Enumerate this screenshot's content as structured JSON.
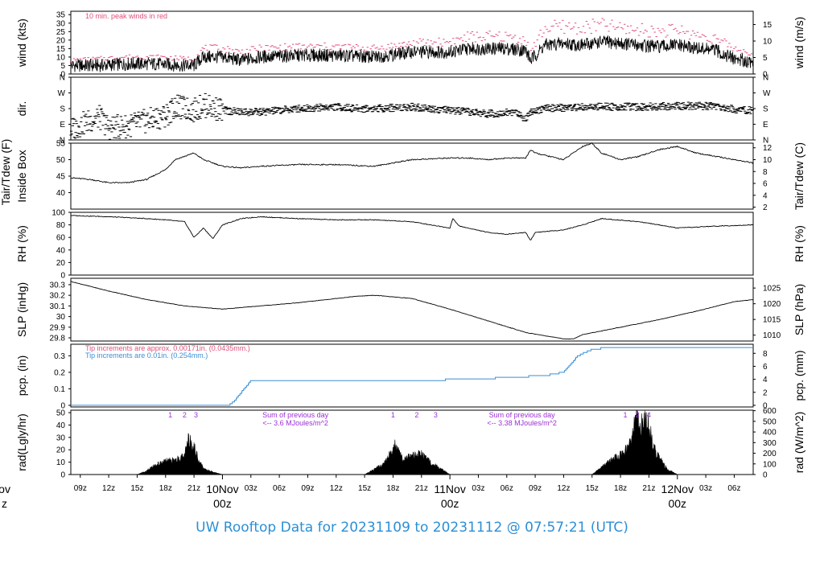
{
  "footer": {
    "title": "UW Rooftop Data for 20231109  to  20231112 @ 07:57:21  (UTC)"
  },
  "colors": {
    "peak": "#e0507a",
    "precip": "#3a8fd6",
    "radnote": "#9b2fd6",
    "day": "#e0507a",
    "title": "#2b8fd6"
  },
  "time_axis": {
    "unit": "hours since 20231109 08z",
    "range": [
      0,
      72
    ],
    "hour_ticks": [
      {
        "t": 1,
        "label": "09z"
      },
      {
        "t": 4,
        "label": "12z"
      },
      {
        "t": 7,
        "label": "15z"
      },
      {
        "t": 10,
        "label": "18z"
      },
      {
        "t": 13,
        "label": "21z"
      },
      {
        "t": 19,
        "label": "03z"
      },
      {
        "t": 22,
        "label": "06z"
      },
      {
        "t": 25,
        "label": "09z"
      },
      {
        "t": 28,
        "label": "12z"
      },
      {
        "t": 31,
        "label": "15z"
      },
      {
        "t": 34,
        "label": "18z"
      },
      {
        "t": 37,
        "label": "21z"
      },
      {
        "t": 43,
        "label": "03z"
      },
      {
        "t": 46,
        "label": "06z"
      },
      {
        "t": 49,
        "label": "09z"
      },
      {
        "t": 52,
        "label": "12z"
      },
      {
        "t": 55,
        "label": "15z"
      },
      {
        "t": 58,
        "label": "18z"
      },
      {
        "t": 61,
        "label": "21z"
      },
      {
        "t": 67,
        "label": "03z"
      },
      {
        "t": 70,
        "label": "06z"
      }
    ],
    "day_marks": [
      {
        "t": -7,
        "line1": "ov",
        "line2": "z"
      },
      {
        "t": 16,
        "line1": "10Nov",
        "line2": "00z"
      },
      {
        "t": 40,
        "line1": "11Nov",
        "line2": "00z"
      },
      {
        "t": 64,
        "line1": "12Nov",
        "line2": "00z"
      }
    ]
  },
  "chart_data": [
    {
      "type": "line",
      "panel": "wind",
      "ylabel": "wind (kts)",
      "ylabel_right": "wind (m/s)",
      "ylim": [
        0,
        37
      ],
      "yticks": [
        0,
        5,
        10,
        15,
        20,
        25,
        30,
        35
      ],
      "right_ticks": [
        0,
        5,
        10,
        15
      ],
      "right_factor": 0.5144,
      "annotation": "10 min. peak winds in red",
      "series": [
        {
          "x": [
            0,
            3,
            6,
            9,
            12,
            13,
            14,
            16,
            18,
            20,
            24,
            28,
            32,
            36,
            40,
            42,
            46,
            48,
            48.5,
            50,
            52,
            54,
            56,
            58,
            60,
            62,
            64,
            66,
            68,
            70,
            72
          ],
          "values": [
            5,
            5,
            6,
            6,
            5,
            5,
            10,
            10,
            8,
            10,
            11,
            11,
            10,
            13,
            13,
            15,
            15,
            14,
            8,
            17,
            18,
            17,
            19,
            18,
            17,
            16,
            17,
            15,
            14,
            9,
            7
          ]
        },
        {
          "name": "peak",
          "x": [
            0,
            3,
            6,
            9,
            12,
            13,
            14,
            16,
            18,
            20,
            24,
            28,
            32,
            36,
            40,
            42,
            46,
            48,
            48.5,
            50,
            52,
            54,
            56,
            58,
            60,
            62,
            64,
            66,
            68,
            70,
            72
          ],
          "values": [
            8,
            9,
            10,
            10,
            9,
            9,
            15,
            15,
            13,
            15,
            16,
            16,
            15,
            18,
            19,
            22,
            22,
            20,
            13,
            27,
            28,
            27,
            29,
            27,
            26,
            25,
            26,
            23,
            21,
            15,
            12
          ]
        }
      ]
    },
    {
      "type": "scatter",
      "panel": "dir",
      "ylabel": "dir.",
      "yticks": [
        "N",
        "E",
        "S",
        "W",
        "N"
      ],
      "ylim": [
        0,
        360
      ],
      "x": [
        0,
        2,
        3,
        4,
        6,
        8,
        10,
        11,
        12,
        13,
        14,
        16,
        18,
        20,
        24,
        28,
        30,
        32,
        36,
        40,
        44,
        47,
        48,
        48.5,
        50,
        52,
        56,
        60,
        64,
        68,
        70,
        72
      ],
      "values": [
        60,
        110,
        130,
        70,
        80,
        110,
        140,
        190,
        180,
        170,
        200,
        170,
        160,
        160,
        180,
        190,
        180,
        180,
        190,
        170,
        150,
        160,
        120,
        165,
        180,
        185,
        190,
        190,
        195,
        195,
        175,
        170
      ]
    },
    {
      "type": "line",
      "panel": "temp",
      "ylabel": "Tair/Tdew (F)",
      "ylabel2": "Inside Box",
      "ylabel_right": "Tair/Tdew (C)",
      "ylim": [
        35,
        55
      ],
      "yticks": [
        40,
        45,
        50,
        55
      ],
      "right_ticks": [
        2,
        4,
        6,
        8,
        10,
        12
      ],
      "series": [
        {
          "x": [
            0,
            2,
            4,
            5,
            6,
            8,
            10,
            11,
            12,
            13,
            14,
            16,
            18,
            20,
            24,
            28,
            32,
            36,
            40,
            42,
            44,
            46,
            48,
            48.5,
            49,
            52,
            54,
            55,
            56,
            58,
            60,
            62,
            64,
            66,
            68,
            70,
            72
          ],
          "values": [
            44.5,
            44,
            43,
            43,
            43,
            44,
            47,
            50,
            51,
            52,
            50,
            48,
            47.5,
            48,
            48.5,
            48.5,
            48,
            50,
            50.5,
            50.5,
            50,
            50.5,
            50.5,
            53,
            52,
            50,
            54,
            55,
            52,
            50,
            51,
            53,
            54,
            52,
            51,
            50,
            49
          ]
        }
      ]
    },
    {
      "type": "line",
      "panel": "rh",
      "ylabel": "RH (%)",
      "ylabel_right": "RH (%)",
      "ylim": [
        0,
        100
      ],
      "yticks": [
        0,
        20,
        40,
        60,
        80,
        100
      ],
      "series": [
        {
          "x": [
            0,
            4,
            8,
            10,
            12,
            13,
            14,
            15,
            16,
            18,
            20,
            24,
            28,
            32,
            36,
            38,
            40,
            40.3,
            41,
            44,
            46,
            48,
            48.5,
            49,
            52,
            54,
            56,
            60,
            62,
            64,
            68,
            72
          ],
          "values": [
            95,
            93,
            90,
            88,
            85,
            60,
            75,
            58,
            80,
            90,
            93,
            90,
            88,
            88,
            85,
            80,
            75,
            90,
            78,
            68,
            65,
            68,
            55,
            68,
            72,
            80,
            90,
            85,
            80,
            75,
            78,
            80
          ]
        }
      ]
    },
    {
      "type": "line",
      "panel": "slp",
      "ylabel": "SLP (inHg)",
      "ylabel_right": "SLP (hPa)",
      "ylim": [
        29.77,
        30.36
      ],
      "yticks": [
        29.8,
        29.9,
        30.0,
        30.1,
        30.2,
        30.3
      ],
      "right_ticks": [
        1010,
        1015,
        1020,
        1025
      ],
      "series": [
        {
          "x": [
            0,
            4,
            8,
            12,
            16,
            20,
            24,
            28,
            30,
            32,
            36,
            40,
            44,
            48,
            52,
            53,
            54,
            58,
            62,
            66,
            70,
            72
          ],
          "values": [
            30.33,
            30.24,
            30.16,
            30.1,
            30.07,
            30.1,
            30.13,
            30.17,
            30.19,
            30.2,
            30.17,
            30.07,
            29.96,
            29.85,
            29.79,
            29.79,
            29.83,
            29.9,
            29.97,
            30.05,
            30.14,
            30.16
          ]
        }
      ]
    },
    {
      "type": "line",
      "panel": "pcp",
      "ylabel": "pcp. (in)",
      "ylabel_right": "pcp. (mm)",
      "ylim": [
        -0.01,
        0.37
      ],
      "yticks": [
        0.0,
        0.1,
        0.2,
        0.3
      ],
      "right_ticks": [
        0,
        2,
        4,
        6,
        8
      ],
      "annotation1": "Tip increments are approx. 0.00171in. (0.0435mm.)",
      "annotation2": "Tip increments are 0.01in. (0.254mm.)",
      "series": [
        {
          "name": "precip",
          "x": [
            0,
            16.7,
            17.3,
            19,
            20,
            24,
            36,
            43,
            50,
            52,
            53.5,
            55,
            56.7,
            72
          ],
          "values": [
            0,
            0,
            0.03,
            0.15,
            0.15,
            0.15,
            0.15,
            0.16,
            0.18,
            0.2,
            0.3,
            0.34,
            0.35,
            0.35
          ]
        }
      ]
    },
    {
      "type": "area",
      "panel": "rad",
      "ylabel": "rad(Lgly/hr)",
      "ylabel_right": "rad (W/m^2)",
      "ylim": [
        0,
        52
      ],
      "yticks": [
        0,
        10,
        20,
        30,
        40,
        50
      ],
      "right_ticks": [
        0,
        100,
        200,
        300,
        400,
        500,
        600
      ],
      "notes": [
        {
          "x": 23.7,
          "line1": "Sum of previous day",
          "line2": "<-- 3.6 MJoules/m^2"
        },
        {
          "x": 47.6,
          "line1": "Sum of previous day",
          "line2": "<-- 3.38 MJoules/m^2"
        }
      ],
      "day_hour_marks": [
        {
          "x": 10.5,
          "label": "1"
        },
        {
          "x": 12,
          "label": "2"
        },
        {
          "x": 13.2,
          "label": "3"
        },
        {
          "x": 34,
          "label": "1"
        },
        {
          "x": 36.5,
          "label": "2"
        },
        {
          "x": 38.5,
          "label": "3"
        },
        {
          "x": 58.5,
          "label": "1"
        },
        {
          "x": 59.8,
          "label": "2"
        },
        {
          "x": 61,
          "label": "4"
        }
      ],
      "series": [
        {
          "x": [
            7,
            8,
            9,
            10,
            11,
            12,
            12.3,
            12.5,
            13,
            13.5,
            14,
            15,
            16,
            31,
            32,
            33,
            34,
            34.3,
            35,
            36,
            37,
            38,
            39,
            40,
            55,
            56,
            57,
            58,
            59,
            59.4,
            59.7,
            60,
            60.5,
            61,
            61.5,
            62,
            63,
            64
          ],
          "values": [
            0,
            3,
            8,
            11,
            12,
            15,
            25,
            31,
            23,
            12,
            5,
            2,
            0,
            0,
            4,
            9,
            20,
            27,
            12,
            15,
            17,
            10,
            5,
            0,
            0,
            6,
            12,
            16,
            25,
            37,
            52,
            38,
            45,
            42,
            22,
            15,
            4,
            0
          ]
        }
      ]
    }
  ]
}
